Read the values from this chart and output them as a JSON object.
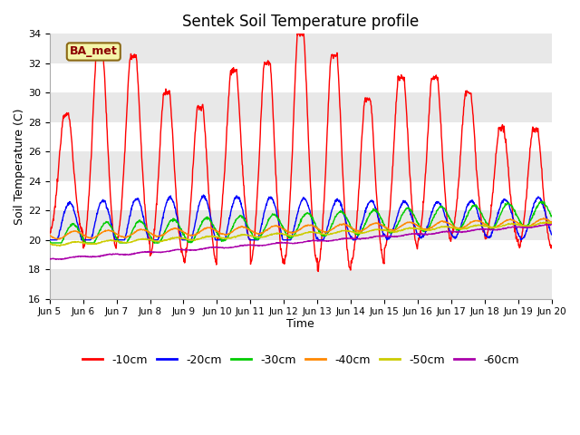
{
  "title": "Sentek Soil Temperature profile",
  "xlabel": "Time",
  "ylabel": "Soil Temperature (C)",
  "ylim": [
    16,
    34
  ],
  "yticks": [
    16,
    18,
    20,
    22,
    24,
    26,
    28,
    30,
    32,
    34
  ],
  "legend_label": "BA_met",
  "background_color": "#ffffff",
  "plot_bg_color": "#ffffff",
  "band_colors": [
    "#e8e8e8",
    "#ffffff"
  ],
  "layers": [
    {
      "label": "-10cm",
      "color": "#ff0000"
    },
    {
      "label": "-20cm",
      "color": "#0000ff"
    },
    {
      "label": "-30cm",
      "color": "#00cc00"
    },
    {
      "label": "-40cm",
      "color": "#ff8800"
    },
    {
      "label": "-50cm",
      "color": "#cccc00"
    },
    {
      "label": "-60cm",
      "color": "#aa00aa"
    }
  ],
  "n_days": 15,
  "points_per_day": 96
}
